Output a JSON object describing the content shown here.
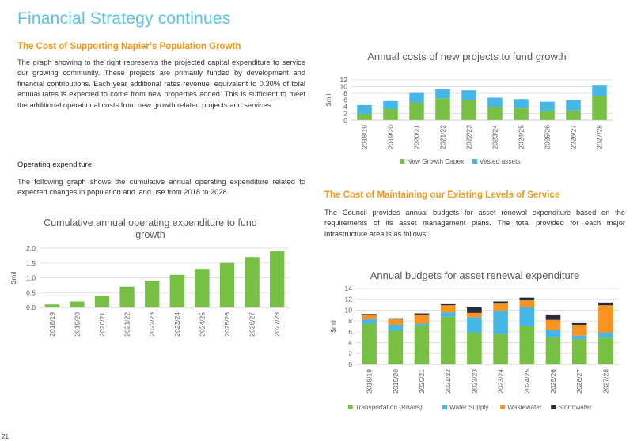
{
  "page": {
    "title": "Financial Strategy continues",
    "page_number": "21"
  },
  "growth_section": {
    "heading": "The Cost of Supporting Napier’s Population Growth",
    "paragraph": "The graph showing to the right represents the projected capital expenditure to service our growing community.  These projects are primarily funded by development and financial contributions.  Each year additional rates revenue, equivalent to 0.30% of total annual rates is expected to come from new properties added.  This is sufficient to meet the additional operational costs from new growth related projects and services."
  },
  "opex_section": {
    "heading": "Operating expenditure",
    "paragraph": "The following graph shows the cumulative annual operating expenditure related to expected changes in population and land use from 2018 to 2028."
  },
  "service_section": {
    "heading": "The Cost of Maintaining our Existing Levels of Service",
    "paragraph": "The Council provides annual budgets for asset renewal expenditure based on the requirements of its asset management plans.  The total provided for each major infrastructure area is as follows:"
  },
  "colors": {
    "green": "#77c043",
    "blue": "#45b6e6",
    "orange": "#f7931e",
    "dark": "#262a3a",
    "grid": "#d9d9d9",
    "axis_text": "#595959"
  },
  "chart_data": [
    {
      "id": "growth",
      "type": "bar",
      "stacked": true,
      "title": "Annual costs of new projects to fund growth",
      "ylabel": "$mil",
      "ylim": [
        0,
        12
      ],
      "yticks": [
        "0",
        "2",
        "4",
        "6",
        "8",
        "10",
        "12"
      ],
      "categories": [
        "2018/19",
        "2019/20",
        "2020/21",
        "2021/22",
        "2022/23",
        "2023/24",
        "2024/25",
        "2025/26",
        "2026/27",
        "2027/28"
      ],
      "series": [
        {
          "name": "New Growth Capex",
          "color": "#77c043",
          "values": [
            1.9,
            3.3,
            5.3,
            6.5,
            6.0,
            3.8,
            3.5,
            2.6,
            2.9,
            7.2
          ]
        },
        {
          "name": "Vested assets",
          "color": "#45b6e6",
          "values": [
            2.6,
            2.4,
            2.8,
            2.9,
            2.9,
            2.9,
            2.8,
            2.9,
            3.0,
            3.1
          ]
        }
      ],
      "legend": "bottom",
      "grid": true
    },
    {
      "id": "opex",
      "type": "bar",
      "title": "Cumulative annual operating expenditure to fund growth",
      "ylabel": "$mil",
      "ylim": [
        0,
        2.0
      ],
      "yticks": [
        "0.0",
        "0.5",
        "1.0",
        "1.5",
        "2.0"
      ],
      "categories": [
        "2018/19",
        "2019/20",
        "2020/21",
        "2021/22",
        "2022/23",
        "2023/24",
        "2024/25",
        "2025/26",
        "2026/27",
        "2027/28"
      ],
      "series": [
        {
          "color": "#77c043",
          "values": [
            0.1,
            0.2,
            0.4,
            0.7,
            0.9,
            1.1,
            1.3,
            1.5,
            1.7,
            1.9
          ]
        }
      ],
      "grid": true
    },
    {
      "id": "renewal",
      "type": "bar",
      "stacked": true,
      "title": "Annual budgets for asset renewal expenditure",
      "ylabel": "$mil",
      "ylim": [
        0,
        14
      ],
      "yticks": [
        "0",
        "2",
        "4",
        "6",
        "8",
        "10",
        "12",
        "14"
      ],
      "categories": [
        "2018/19",
        "2019/20",
        "2020/21",
        "2021/22",
        "2022/23",
        "2023/24",
        "2024/25",
        "2025/26",
        "2026/27",
        "2027/28"
      ],
      "series": [
        {
          "name": "Transportation (Roads)",
          "color": "#77c043",
          "values": [
            7.5,
            6.2,
            7.2,
            8.8,
            5.9,
            5.6,
            7.0,
            5.0,
            4.6,
            4.9
          ]
        },
        {
          "name": "Water Supply",
          "color": "#45b6e6",
          "values": [
            0.8,
            1.1,
            0.3,
            0.8,
            2.8,
            4.3,
            3.5,
            1.4,
            0.7,
            1.0
          ]
        },
        {
          "name": "Wastewater",
          "color": "#f7931e",
          "values": [
            0.9,
            1.0,
            1.7,
            1.3,
            0.8,
            1.3,
            1.3,
            1.8,
            2.0,
            5.0
          ]
        },
        {
          "name": "Stormwater",
          "color": "#262a3a",
          "values": [
            0.1,
            0.2,
            0.2,
            0.2,
            1.0,
            0.4,
            0.5,
            1.0,
            0.3,
            0.5
          ]
        }
      ],
      "legend": "bottom",
      "grid": true
    }
  ]
}
